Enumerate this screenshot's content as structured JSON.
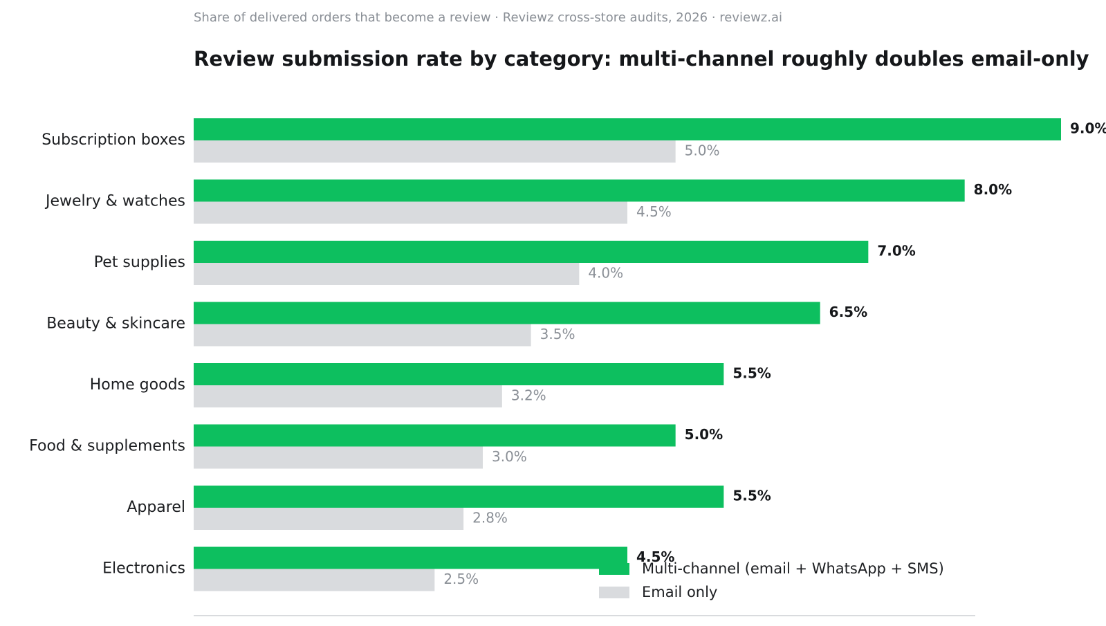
{
  "subtitle": "Share of delivered orders that become a review · Reviewz cross-store audits, 2026 · reviewz.ai",
  "title": "Review submission rate by category: multi-channel roughly doubles email-only",
  "chart_data": {
    "type": "bar",
    "orientation": "horizontal",
    "categories": [
      "Subscription boxes",
      "Jewelry & watches",
      "Pet supplies",
      "Beauty & skincare",
      "Home goods",
      "Food & supplements",
      "Apparel",
      "Electronics"
    ],
    "series": [
      {
        "name": "Multi-channel (email + WhatsApp + SMS)",
        "color": "#0dbf5f",
        "values": [
          9.0,
          8.0,
          7.0,
          6.5,
          5.5,
          5.0,
          5.5,
          4.5
        ]
      },
      {
        "name": "Email only",
        "color": "#d9dbde",
        "values": [
          5.0,
          4.5,
          4.0,
          3.5,
          3.2,
          3.0,
          2.8,
          2.5
        ]
      }
    ],
    "value_suffix": "%",
    "xlim": [
      0,
      10.4
    ],
    "grid": false,
    "legend_position": "bottom-right"
  }
}
